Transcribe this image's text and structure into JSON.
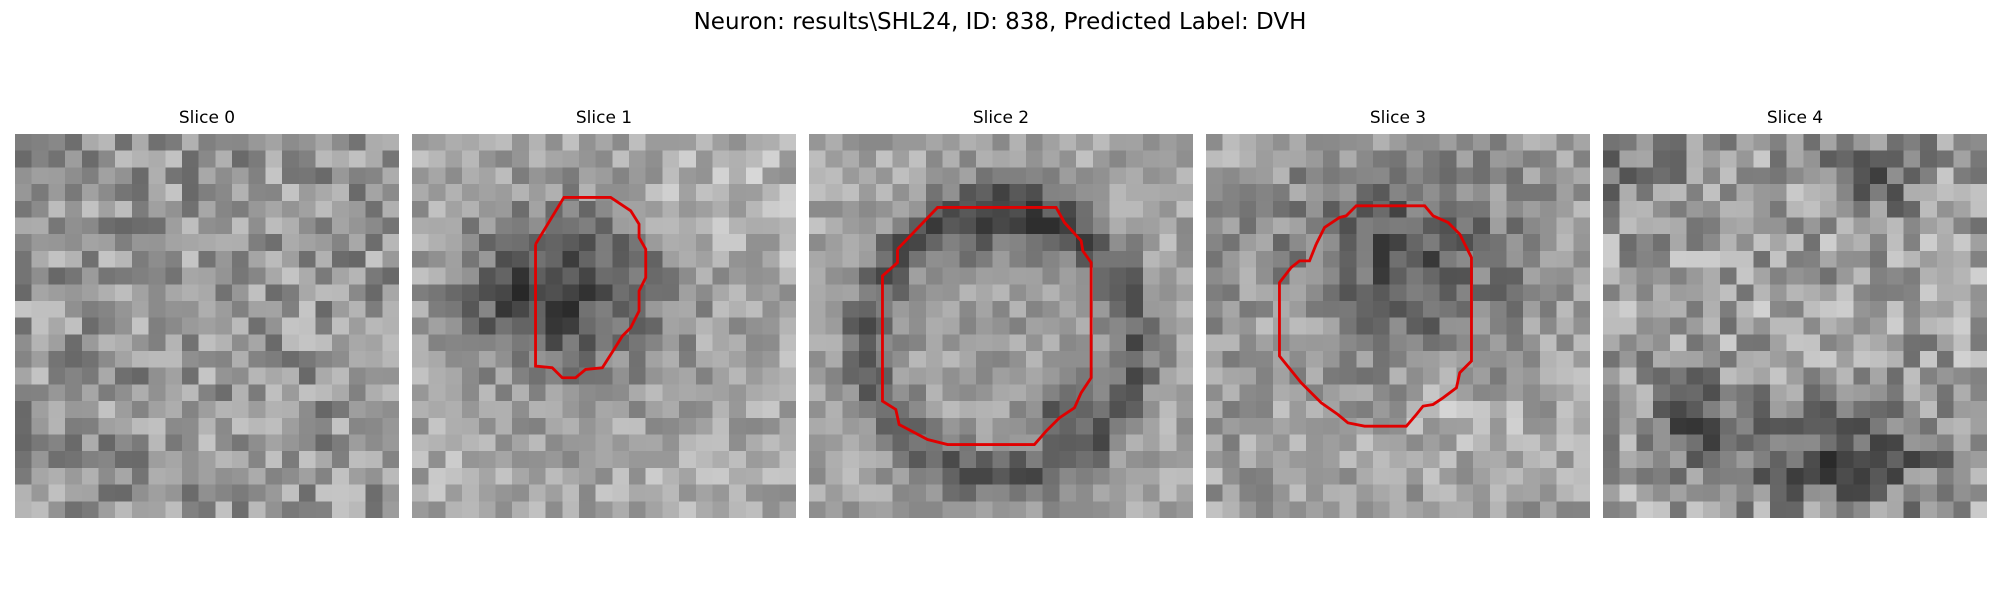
{
  "figure": {
    "title": "Neuron: results\\SHL24, ID: 838, Predicted Label: DVH"
  },
  "slices": [
    {
      "title": "Slice 0"
    },
    {
      "title": "Slice 1"
    },
    {
      "title": "Slice 2"
    },
    {
      "title": "Slice 3"
    },
    {
      "title": "Slice 4"
    }
  ],
  "colors": {
    "contour": "#e00000",
    "background": "#ffffff"
  }
}
